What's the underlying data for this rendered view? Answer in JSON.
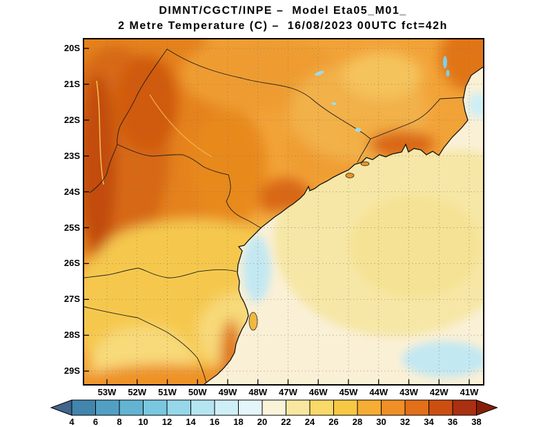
{
  "header": {
    "title_line1": "DIMNT/CGCT/INPE –  Model Eta05_M01_",
    "title_line2": "2 Metre Temperature (C) –  16/08/2023 00UTC fct=42h"
  },
  "map": {
    "lat_labels": [
      "20S",
      "21S",
      "22S",
      "23S",
      "24S",
      "25S",
      "26S",
      "27S",
      "28S",
      "29S"
    ],
    "lon_labels": [
      "53W",
      "52W",
      "51W",
      "50W",
      "49W",
      "48W",
      "47W",
      "46W",
      "45W",
      "44W",
      "43W",
      "42W",
      "41W"
    ]
  },
  "colorbar": {
    "tick_values": [
      4,
      6,
      8,
      10,
      12,
      14,
      16,
      18,
      20,
      22,
      24,
      26,
      28,
      30,
      32,
      34,
      36,
      38
    ],
    "arrow_left_color": "#44658b",
    "arrow_right_color": "#871d07",
    "segment_colors": [
      "#4285ad",
      "#51a0c4",
      "#62b4d2",
      "#7ac7e0",
      "#97d7ea",
      "#b4e5f1",
      "#cfeff6",
      "#e4f6f9",
      "#faf3da",
      "#f8e79e",
      "#f8d969",
      "#f7c843",
      "#f5ad33",
      "#ef8f27",
      "#e26f1a",
      "#cc4f12",
      "#a93010"
    ]
  },
  "chart_data": {
    "type": "heatmap",
    "title": "2 Metre Temperature (C) – 16/08/2023 00UTC fct=42h",
    "source": "DIMNT/CGCT/INPE",
    "model": "Eta05_M01_",
    "lat_range": [
      "20S",
      "29S"
    ],
    "lon_range": [
      "53W",
      "41W"
    ],
    "scale_ticks": [
      4,
      6,
      8,
      10,
      12,
      14,
      16,
      18,
      20,
      22,
      24,
      26,
      28,
      30,
      32,
      34,
      36,
      38
    ],
    "scale_colors": [
      "#44658b",
      "#4285ad",
      "#51a0c4",
      "#62b4d2",
      "#7ac7e0",
      "#97d7ea",
      "#b4e5f1",
      "#cfeff6",
      "#e4f6f9",
      "#faf3da",
      "#f8e79e",
      "#f8d969",
      "#f7c843",
      "#f5ad33",
      "#ef8f27",
      "#e26f1a",
      "#cc4f12",
      "#a93010",
      "#871d07"
    ]
  }
}
